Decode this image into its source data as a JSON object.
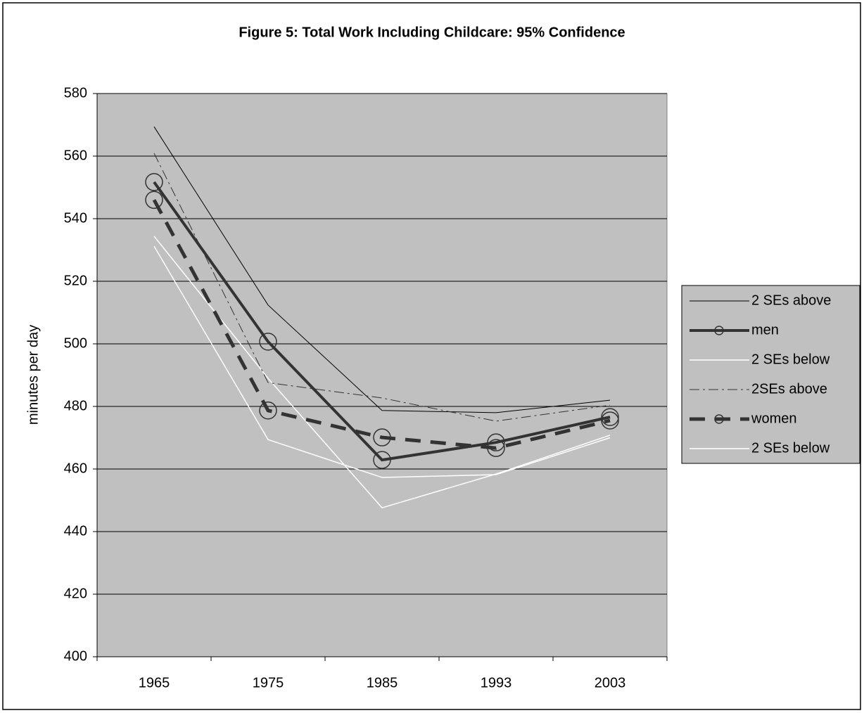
{
  "chart_data": {
    "type": "line",
    "title": "Figure 5: Total Work Including Childcare: 95% Confidence",
    "y_label": "minutes per day",
    "categories": [
      "1965",
      "1975",
      "1985",
      "1993",
      "2003"
    ],
    "ylim": [
      400,
      580
    ],
    "yticks": [
      400,
      420,
      440,
      460,
      480,
      500,
      520,
      540,
      560,
      580
    ],
    "grid": true,
    "legend": "right",
    "series": [
      {
        "name": "2 SEs above",
        "color": "#000000",
        "width": 1,
        "dash": "solid",
        "marker": "none",
        "values": [
          569.4,
          512.4,
          478.7,
          478,
          482
        ]
      },
      {
        "name": "men",
        "color": "#333333",
        "width": 4,
        "dash": "solid",
        "marker": "circle",
        "values": [
          551.7,
          500.7,
          462.9,
          468.5,
          476.6
        ]
      },
      {
        "name": "2 SEs below",
        "color": "#ffffff",
        "width": 1.5,
        "dash": "solid",
        "marker": "none",
        "values": [
          534.4,
          489,
          447.6,
          458.4,
          470.8
        ]
      },
      {
        "name": "2SEs above",
        "color": "#333333",
        "width": 1,
        "dash": "dashdot",
        "marker": "none",
        "values": [
          560.9,
          487.6,
          482.7,
          475.3,
          480.4
        ]
      },
      {
        "name": "women",
        "color": "#333333",
        "width": 5,
        "dash": "dash",
        "marker": "circle",
        "values": [
          546,
          478.7,
          470.1,
          466.7,
          475.5
        ]
      },
      {
        "name": "2 SEs below",
        "color": "#ffffff",
        "width": 1.5,
        "dash": "solid",
        "marker": "none",
        "values": [
          531.2,
          469.4,
          457.3,
          458.2,
          470
        ]
      }
    ]
  }
}
